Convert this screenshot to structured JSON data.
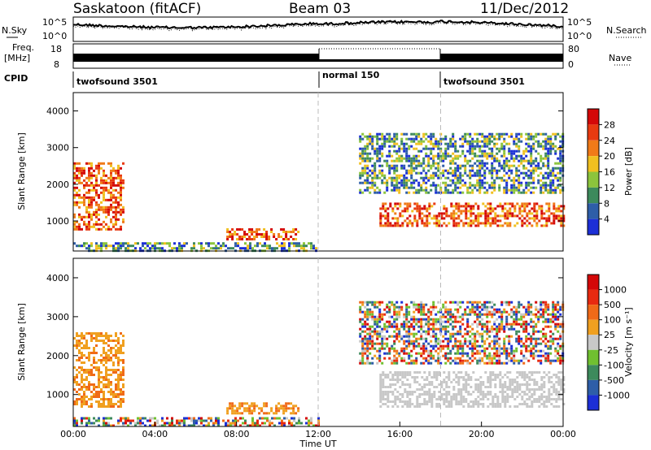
{
  "header": {
    "station": "Saskatoon (fitACF)",
    "beam": "Beam 03",
    "date": "11/Dec/2012"
  },
  "strips": {
    "nsky_label": "N.Sky",
    "nsky_ticks": [
      "10^5",
      "10^0"
    ],
    "nsky_right_ticks": [
      "10^5",
      "10^0"
    ],
    "nsearch_label": "N.Search",
    "freq_label_top": "Freq.",
    "freq_label_unit": "[MHz]",
    "freq_ticks": [
      "18",
      "8"
    ],
    "nave_label": "Nave",
    "nave_ticks": [
      "80",
      "0"
    ],
    "cpid_label": "CPID",
    "cpid_segments": [
      {
        "label": "twofsound 3501",
        "start_hour": 0,
        "end_hour": 12
      },
      {
        "label": "normal 150",
        "start_hour": 12,
        "end_hour": 18
      },
      {
        "label": "twofsound 3501",
        "start_hour": 18,
        "end_hour": 24
      }
    ]
  },
  "chart_data": [
    {
      "type": "heatmap",
      "parameter": "power",
      "ylabel": "Slant Range [km]",
      "ylim": [
        180,
        4500
      ],
      "yticks": [
        "1000",
        "2000",
        "3000",
        "4000"
      ],
      "xlim_hours": [
        0,
        24
      ],
      "colorbar_label": "Power [dB]",
      "colorbar_ticks": [
        "4",
        "8",
        "12",
        "16",
        "20",
        "24",
        "28"
      ],
      "colorbar_colors": [
        "#1c2fd6",
        "#2e5ea8",
        "#3d8a5c",
        "#8cc43c",
        "#f0c020",
        "#f07a18",
        "#e83a10",
        "#d40808"
      ],
      "echo_regions": [
        {
          "name": "near-range band",
          "x_hours": [
            0,
            12
          ],
          "y_km": [
            180,
            420
          ],
          "level": "mixed"
        },
        {
          "name": "morning echo",
          "x_hours": [
            0,
            2.5
          ],
          "y_km": [
            800,
            2600
          ],
          "level": "high"
        },
        {
          "name": "midday E-region",
          "x_hours": [
            7.5,
            11
          ],
          "y_km": [
            500,
            800
          ],
          "level": "high"
        },
        {
          "name": "afternoon F-region",
          "x_hours": [
            15,
            24
          ],
          "y_km": [
            900,
            1500
          ],
          "level": "high"
        },
        {
          "name": "far-range patches",
          "x_hours": [
            14,
            24
          ],
          "y_km": [
            1800,
            3400
          ],
          "level": "mixed"
        }
      ]
    },
    {
      "type": "heatmap",
      "parameter": "velocity",
      "ylabel": "Slant Range [km]",
      "ylim": [
        180,
        4500
      ],
      "yticks": [
        "1000",
        "2000",
        "3000",
        "4000"
      ],
      "xlim_hours": [
        0,
        24
      ],
      "xticks": [
        "00:00",
        "04:00",
        "08:00",
        "12:00",
        "16:00",
        "20:00",
        "00:00"
      ],
      "xlabel": "Time UT",
      "colorbar_label": "Velocity [m s⁻¹]",
      "colorbar_ticks": [
        "1000",
        "500",
        "100",
        "25",
        "-25",
        "-100",
        "-500",
        "-1000"
      ],
      "colorbar_colors": [
        "#1c2fd6",
        "#2e5ea8",
        "#3d8a5c",
        "#70c030",
        "#c8c8c8",
        "#f0a020",
        "#f06a18",
        "#e82a10",
        "#d40808"
      ],
      "echo_regions": [
        {
          "name": "near-range band",
          "x_hours": [
            0,
            12
          ],
          "y_km": [
            180,
            420
          ],
          "level": "mixed"
        },
        {
          "name": "morning echo",
          "x_hours": [
            0,
            2.5
          ],
          "y_km": [
            700,
            2600
          ],
          "level": "orange"
        },
        {
          "name": "midday E-region",
          "x_hours": [
            7.5,
            11
          ],
          "y_km": [
            500,
            800
          ],
          "level": "orange"
        },
        {
          "name": "afternoon F-region",
          "x_hours": [
            15,
            24
          ],
          "y_km": [
            700,
            1600
          ],
          "level": "grey"
        },
        {
          "name": "far-range patches",
          "x_hours": [
            14,
            24
          ],
          "y_km": [
            1800,
            3400
          ],
          "level": "mixed"
        }
      ]
    }
  ]
}
